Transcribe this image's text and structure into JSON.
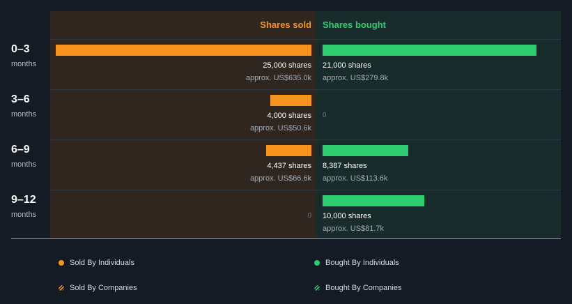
{
  "chart_data": {
    "type": "bar",
    "orientation": "horizontal",
    "series_headers": [
      "Shares sold",
      "Shares bought"
    ],
    "rows": [
      {
        "label": "0–3",
        "sub": "months",
        "sold": {
          "shares": 25000,
          "shares_text": "25,000 shares",
          "approx_text": "approx. US$635.0k"
        },
        "bought": {
          "shares": 21000,
          "shares_text": "21,000 shares",
          "approx_text": "approx. US$279.8k"
        }
      },
      {
        "label": "3–6",
        "sub": "months",
        "sold": {
          "shares": 4000,
          "shares_text": "4,000 shares",
          "approx_text": "approx. US$50.6k"
        },
        "bought": {
          "shares": 0,
          "shares_text": "0",
          "approx_text": ""
        }
      },
      {
        "label": "6–9",
        "sub": "months",
        "sold": {
          "shares": 4437,
          "shares_text": "4,437 shares",
          "approx_text": "approx. US$66.6k"
        },
        "bought": {
          "shares": 8387,
          "shares_text": "8,387 shares",
          "approx_text": "approx. US$113.6k"
        }
      },
      {
        "label": "9–12",
        "sub": "months",
        "sold": {
          "shares": 0,
          "shares_text": "0",
          "approx_text": ""
        },
        "bought": {
          "shares": 10000,
          "shares_text": "10,000 shares",
          "approx_text": "approx. US$81.7k"
        }
      }
    ],
    "legend": [
      {
        "label": "Sold By Individuals",
        "color": "#f7941d",
        "style": "solid"
      },
      {
        "label": "Bought By Individuals",
        "color": "#2ecc71",
        "style": "solid"
      },
      {
        "label": "Sold By Companies",
        "color": "#f7941d",
        "style": "hatched"
      },
      {
        "label": "Bought By Companies",
        "color": "#2ecc71",
        "style": "hatched"
      }
    ],
    "colors": {
      "sold": "#f7941d",
      "bought": "#2ecc71"
    }
  }
}
